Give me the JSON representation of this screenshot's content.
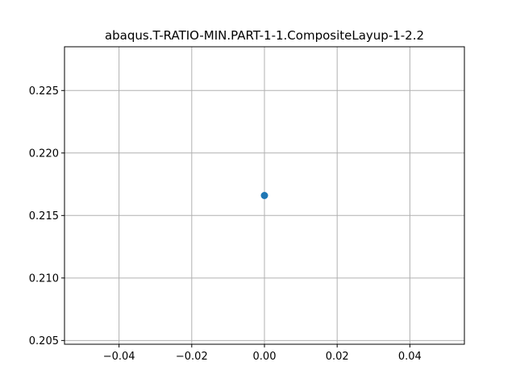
{
  "chart_data": {
    "type": "scatter",
    "title": "abaqus.T-RATIO-MIN.PART-1-1.CompositeLayup-1-2.2",
    "xlabel": "",
    "ylabel": "",
    "xlim": [
      -0.055,
      0.055
    ],
    "ylim": [
      0.2047,
      0.2285
    ],
    "grid": true,
    "series": [
      {
        "x": [
          0.0
        ],
        "y": [
          0.2166
        ]
      }
    ],
    "x_ticks": [
      -0.04,
      -0.02,
      0.0,
      0.02,
      0.04
    ],
    "x_tick_labels": [
      "−0.04",
      "−0.02",
      "0.00",
      "0.02",
      "0.04"
    ],
    "y_ticks": [
      0.205,
      0.21,
      0.215,
      0.22,
      0.225
    ],
    "y_tick_labels": [
      "0.205",
      "0.210",
      "0.215",
      "0.220",
      "0.225"
    ],
    "colors": {
      "marker": "#1f77b4",
      "grid": "#b0b0b0",
      "axes": "#000000"
    }
  }
}
